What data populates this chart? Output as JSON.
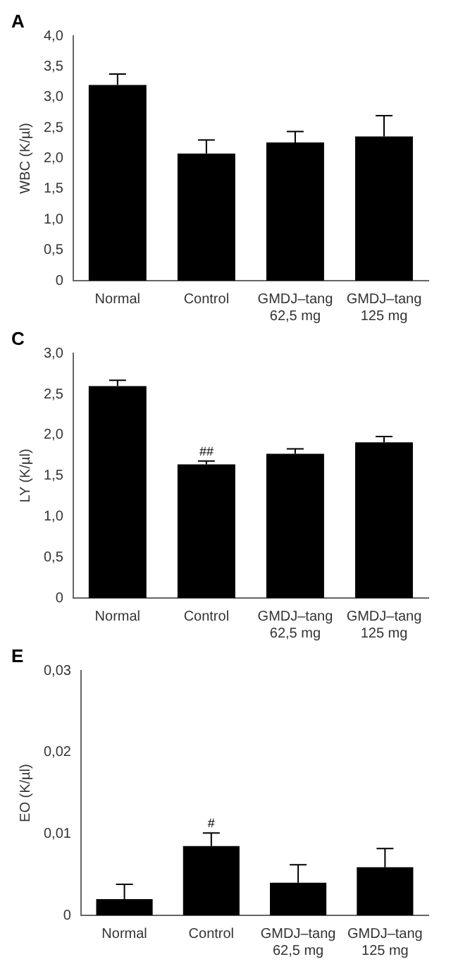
{
  "chart_data": [
    {
      "type": "bar",
      "title": "A",
      "ylabel": "WBC (K/µl)",
      "categories": [
        "Normal",
        "Control",
        "GMDJ–tang\n62,5 mg",
        "GMDJ–tang\n125 mg"
      ],
      "values": [
        3.2,
        2.08,
        2.26,
        2.36
      ],
      "errors": [
        [
          3.2,
          3.38
        ],
        [
          2.08,
          2.3
        ],
        [
          2.26,
          2.44
        ],
        [
          2.36,
          2.7
        ]
      ],
      "color": "#000000",
      "ylim": [
        0,
        4
      ],
      "yticks": [
        {
          "value": 0,
          "label": "0"
        },
        {
          "value": 0.5,
          "label": "0,5"
        },
        {
          "value": 1,
          "label": "1,0"
        },
        {
          "value": 1.5,
          "label": "1,5"
        },
        {
          "value": 2,
          "label": "2,0"
        },
        {
          "value": 2.5,
          "label": "2,5"
        },
        {
          "value": 3,
          "label": "3,0"
        },
        {
          "value": 3.5,
          "label": "3,5"
        },
        {
          "value": 4,
          "label": "4,0"
        }
      ],
      "grid": false
    },
    {
      "type": "bar",
      "title": "C",
      "ylabel": "LY (K/µl)",
      "categories": [
        "Normal",
        "Control",
        "GMDJ–tang\n62,5 mg",
        "GMDJ–tang\n125 mg"
      ],
      "values": [
        2.6,
        1.64,
        1.77,
        1.91
      ],
      "errors": [
        [
          2.6,
          2.67
        ],
        [
          1.64,
          1.68
        ],
        [
          1.77,
          1.83
        ],
        [
          1.91,
          1.98
        ]
      ],
      "color": "#000000",
      "ylim": [
        0,
        3
      ],
      "yticks": [
        {
          "value": 0,
          "label": "0"
        },
        {
          "value": 0.5,
          "label": "0,5"
        },
        {
          "value": 1,
          "label": "1,0"
        },
        {
          "value": 1.5,
          "label": "1,5"
        },
        {
          "value": 2,
          "label": "2,0"
        },
        {
          "value": 2.5,
          "label": "2,5"
        },
        {
          "value": 3,
          "label": "3,0"
        }
      ],
      "annotations": [
        {
          "text": "##",
          "x": "Control",
          "y": 1.68
        }
      ],
      "grid": false
    },
    {
      "type": "bar",
      "title": "E",
      "ylabel": "EO (K/µl)",
      "categories": [
        "Normal",
        "Control",
        "GMDJ–tang\n62,5 mg",
        "GMDJ–tang\n125 mg"
      ],
      "values": [
        0.002,
        0.0085,
        0.004,
        0.0059
      ],
      "errors": [
        [
          0.002,
          0.0038
        ],
        [
          0.0085,
          0.0101
        ],
        [
          0.004,
          0.0062
        ],
        [
          0.0059,
          0.0082
        ]
      ],
      "color": "#000000",
      "ylim": [
        0,
        0.03
      ],
      "yticks": [
        {
          "value": 0,
          "label": "0"
        },
        {
          "value": 0.01,
          "label": "0,01"
        },
        {
          "value": 0.02,
          "label": "0,02"
        },
        {
          "value": 0.03,
          "label": "0,03"
        }
      ],
      "annotations": [
        {
          "text": "#",
          "x": "Control",
          "y": 0.0101
        }
      ],
      "grid": false
    }
  ]
}
